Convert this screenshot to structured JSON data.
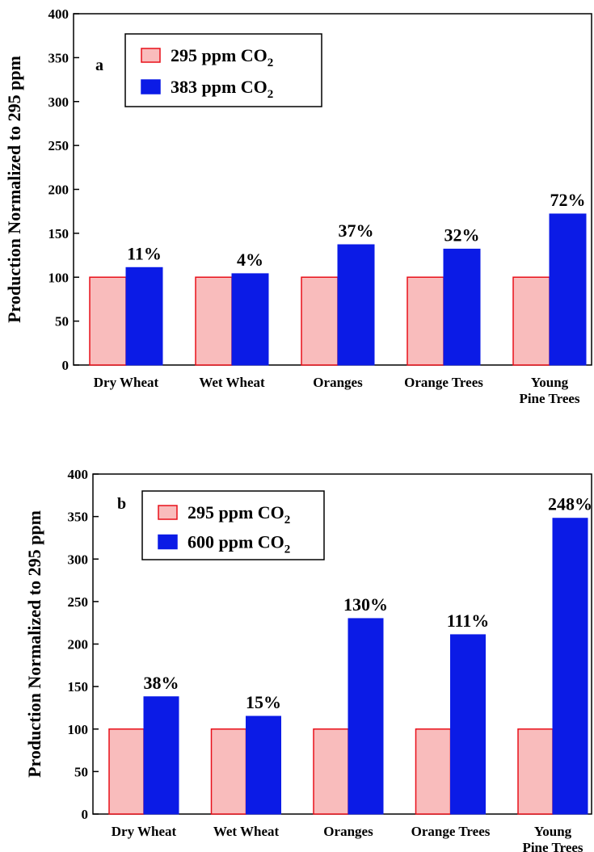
{
  "colors": {
    "c295": "#f9bcbc",
    "c295_edge": "#e8101a",
    "c_elev": "#0b1be6",
    "axis": "#000000"
  },
  "chart_data": [
    {
      "type": "bar",
      "panel_label": "a",
      "ylabel": "Production Normalized to 295 ppm",
      "xlabel": "",
      "ylim": [
        0,
        400
      ],
      "yticks": [
        0,
        50,
        100,
        150,
        200,
        250,
        300,
        350,
        400
      ],
      "categories": [
        [
          "Dry Wheat"
        ],
        [
          "Wet Wheat"
        ],
        [
          "Oranges"
        ],
        [
          "Orange Trees"
        ],
        [
          "Young",
          "Pine Trees"
        ]
      ],
      "series": [
        {
          "name": "295 ppm CO",
          "sub": "2",
          "values": [
            100,
            100,
            100,
            100,
            100
          ]
        },
        {
          "name": "383 ppm CO",
          "sub": "2",
          "values": [
            111,
            104,
            137,
            132,
            172
          ]
        }
      ],
      "labels": [
        "11%",
        "4%",
        "37%",
        "32%",
        "72%"
      ],
      "legend_position": "top-left"
    },
    {
      "type": "bar",
      "panel_label": "b",
      "ylabel": "Production Normalized to 295 ppm",
      "xlabel": "",
      "ylim": [
        0,
        400
      ],
      "yticks": [
        0,
        50,
        100,
        150,
        200,
        250,
        300,
        350,
        400
      ],
      "categories": [
        [
          "Dry Wheat"
        ],
        [
          "Wet Wheat"
        ],
        [
          "Oranges"
        ],
        [
          "Orange Trees"
        ],
        [
          "Young",
          "Pine Trees"
        ]
      ],
      "series": [
        {
          "name": "295 ppm CO",
          "sub": "2",
          "values": [
            100,
            100,
            100,
            100,
            100
          ]
        },
        {
          "name": "600 ppm CO",
          "sub": "2",
          "values": [
            138,
            115,
            230,
            211,
            348
          ]
        }
      ],
      "labels": [
        "38%",
        "15%",
        "130%",
        "111%",
        "248%"
      ],
      "legend_position": "top-left"
    }
  ]
}
